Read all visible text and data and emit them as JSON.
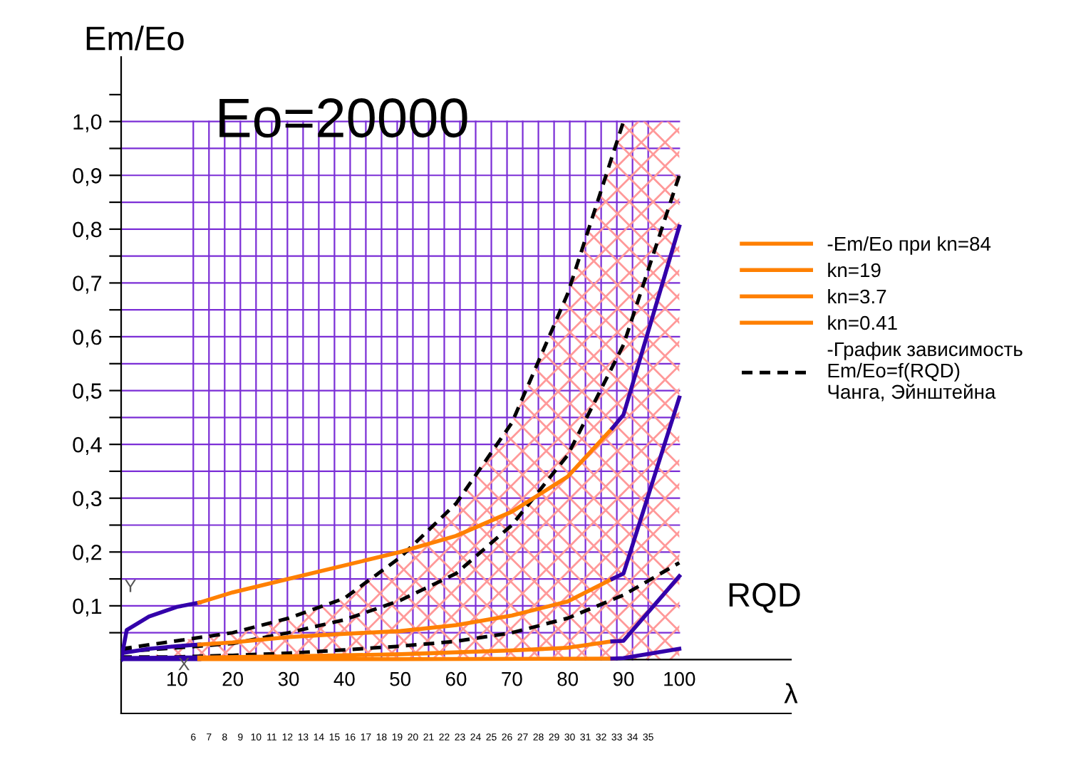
{
  "chart_data": {
    "type": "line",
    "title": "Eo=20000",
    "xlabel": "RQD",
    "ylabel": "Em/Eo",
    "x2label": "λ",
    "xlim": [
      0,
      120
    ],
    "ylim": [
      -0.1,
      1.12
    ],
    "xticks": [
      10,
      20,
      30,
      40,
      50,
      60,
      70,
      80,
      90,
      100
    ],
    "yticks": [
      {
        "value": 0.05,
        "label": null
      },
      {
        "value": 0.1,
        "label": "0,1"
      },
      {
        "value": 0.15,
        "label": null
      },
      {
        "value": 0.2,
        "label": "0,2"
      },
      {
        "value": 0.25,
        "label": null
      },
      {
        "value": 0.3,
        "label": "0,3"
      },
      {
        "value": 0.35,
        "label": null
      },
      {
        "value": 0.4,
        "label": "0,4"
      },
      {
        "value": 0.45,
        "label": null
      },
      {
        "value": 0.5,
        "label": "0,5"
      },
      {
        "value": 0.55,
        "label": null
      },
      {
        "value": 0.6,
        "label": "0,6"
      },
      {
        "value": 0.65,
        "label": null
      },
      {
        "value": 0.7,
        "label": "0,7"
      },
      {
        "value": 0.75,
        "label": null
      },
      {
        "value": 0.8,
        "label": "0,8"
      },
      {
        "value": 0.85,
        "label": null
      },
      {
        "value": 0.9,
        "label": "0,9"
      },
      {
        "value": 0.95,
        "label": null
      },
      {
        "value": 1.0,
        "label": "1,0"
      },
      {
        "value": 1.05,
        "label": null
      }
    ],
    "x2lim": [
      1.4,
      44.1
    ],
    "x2ticks": [
      6,
      7,
      8,
      9,
      10,
      11,
      12,
      13,
      14,
      15,
      16,
      17,
      18,
      19,
      20,
      21,
      22,
      23,
      24,
      25,
      26,
      27,
      28,
      29,
      30,
      31,
      32,
      33,
      34,
      35
    ],
    "grid": true,
    "legend": "right",
    "marker": "none",
    "annotations": [
      "Y",
      "X"
    ],
    "series": [
      {
        "type": "area",
        "color": "#ff9999",
        "x": [
          5,
          10,
          20,
          30,
          40,
          50,
          60,
          70,
          80,
          90,
          100
        ],
        "values": [
          0.0,
          0.035,
          0.05,
          0.077,
          0.114,
          0.19,
          0.29,
          0.44,
          0.68,
          1.0,
          1.0
        ]
      },
      {
        "color": "#000000",
        "line_style": "dashed",
        "name": "-График зависимость\nEm/Eo=f(RQD)\nЧанга, Эйнштейна",
        "x": [
          0,
          10,
          20,
          30,
          40,
          50,
          60,
          70,
          80,
          90
        ],
        "values": [
          0.02,
          0.035,
          0.05,
          0.077,
          0.114,
          0.19,
          0.29,
          0.44,
          0.68,
          1.0
        ]
      },
      {
        "color": "#000000",
        "line_style": "dashed",
        "x": [
          0,
          10,
          20,
          30,
          40,
          50,
          60,
          70,
          80,
          90,
          100
        ],
        "values": [
          0.015,
          0.022,
          0.03,
          0.05,
          0.074,
          0.11,
          0.16,
          0.25,
          0.38,
          0.585,
          0.9
        ]
      },
      {
        "color": "#000000",
        "line_style": "dashed",
        "x": [
          0,
          10,
          20,
          30,
          40,
          50,
          60,
          70,
          80,
          90,
          100
        ],
        "values": [
          0.005,
          0.005,
          0.008,
          0.012,
          0.018,
          0.025,
          0.034,
          0.05,
          0.077,
          0.12,
          0.18
        ]
      },
      {
        "color": "#3300aa",
        "x": [
          0,
          1,
          5,
          10,
          14
        ],
        "values": [
          0.0,
          0.055,
          0.08,
          0.098,
          0.106
        ]
      },
      {
        "color": "#ff8000",
        "name": "-Em/Eo при kn=84",
        "x": [
          14,
          20,
          30,
          40,
          50,
          60,
          70,
          80,
          88
        ],
        "values": [
          0.106,
          0.125,
          0.15,
          0.175,
          0.2,
          0.23,
          0.275,
          0.34,
          0.43
        ]
      },
      {
        "color": "#3300aa",
        "x": [
          88,
          90,
          100
        ],
        "values": [
          0.43,
          0.455,
          0.805
        ]
      },
      {
        "color": "#3300aa",
        "x": [
          0,
          5,
          10,
          14
        ],
        "values": [
          0.012,
          0.02,
          0.025,
          0.028
        ]
      },
      {
        "color": "#ff8000",
        "name": "kn=19",
        "x": [
          14,
          20,
          30,
          40,
          50,
          60,
          70,
          80,
          88
        ],
        "values": [
          0.028,
          0.032,
          0.042,
          0.048,
          0.053,
          0.064,
          0.082,
          0.108,
          0.15
        ]
      },
      {
        "color": "#3300aa",
        "x": [
          88,
          90,
          100
        ],
        "values": [
          0.15,
          0.16,
          0.487
        ]
      },
      {
        "color": "#3300aa",
        "x": [
          0,
          14
        ],
        "values": [
          0.003,
          0.004
        ]
      },
      {
        "color": "#ff8000",
        "name": "kn=3.7",
        "x": [
          14,
          30,
          50,
          70,
          80,
          88
        ],
        "values": [
          0.004,
          0.006,
          0.01,
          0.017,
          0.022,
          0.034
        ]
      },
      {
        "color": "#3300aa",
        "x": [
          88,
          90,
          100
        ],
        "values": [
          0.034,
          0.035,
          0.155
        ]
      },
      {
        "color": "#3300aa",
        "x": [
          0,
          14
        ],
        "values": [
          0.001,
          0.001
        ]
      },
      {
        "color": "#ff8000",
        "name": "kn=0.41",
        "x": [
          14,
          50,
          88
        ],
        "values": [
          0.001,
          0.001,
          0.002
        ]
      },
      {
        "color": "#3300aa",
        "x": [
          88,
          90,
          100
        ],
        "values": [
          0.002,
          0.003,
          0.02
        ]
      }
    ]
  }
}
